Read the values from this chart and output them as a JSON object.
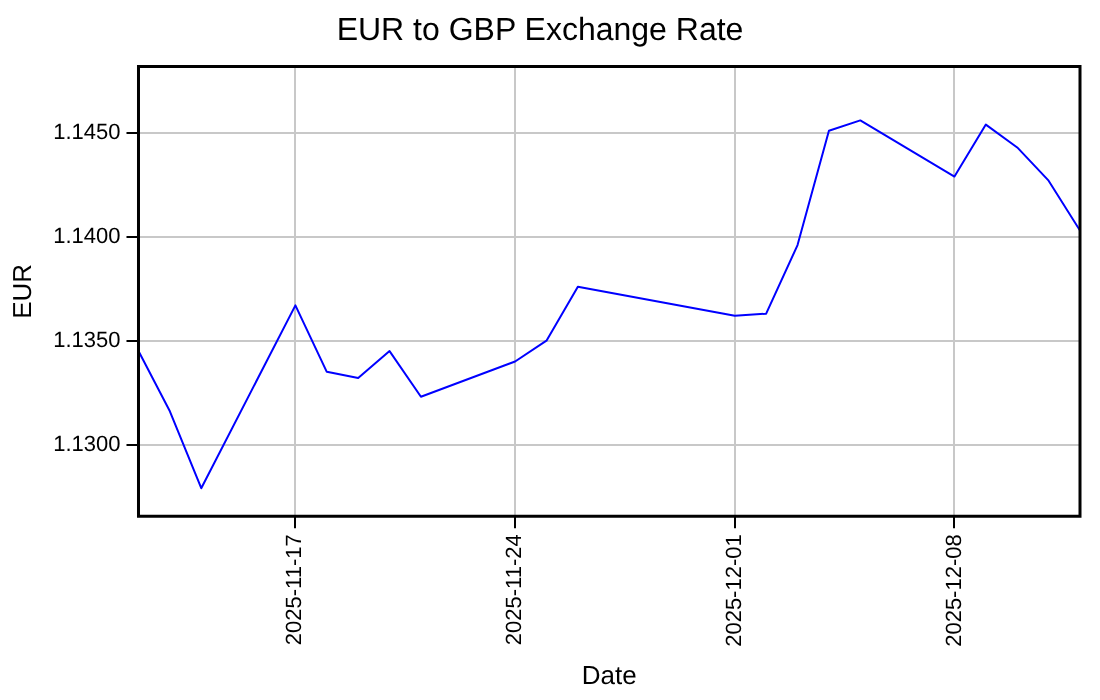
{
  "chart_data": {
    "type": "line",
    "title": "EUR to GBP Exchange Rate",
    "xlabel": "Date",
    "ylabel": "EUR",
    "x": [
      "2025-11-12",
      "2025-11-13",
      "2025-11-14",
      "2025-11-17",
      "2025-11-18",
      "2025-11-19",
      "2025-11-20",
      "2025-11-21",
      "2025-11-24",
      "2025-11-25",
      "2025-11-26",
      "2025-12-01",
      "2025-12-02",
      "2025-12-03",
      "2025-12-04",
      "2025-12-05",
      "2025-12-08",
      "2025-12-09",
      "2025-12-10",
      "2025-12-11",
      "2025-12-12"
    ],
    "series": [
      {
        "color": "#0000ff",
        "values": [
          1.1345,
          1.1316,
          1.1279,
          1.1367,
          1.1335,
          1.1332,
          1.1345,
          1.1323,
          1.134,
          1.135,
          1.1376,
          1.1362,
          1.1363,
          1.1396,
          1.1451,
          1.1456,
          1.1429,
          1.1454,
          1.1443,
          1.1427,
          1.1403
        ]
      }
    ],
    "xlim": [
      "2025-11-12",
      "2025-12-12"
    ],
    "xticks": [
      "2025-11-17",
      "2025-11-24",
      "2025-12-01",
      "2025-12-08"
    ],
    "ylim": [
      1.12655,
      1.1482
    ],
    "yticks": [
      {
        "value": 1.13,
        "label": "1.1300"
      },
      {
        "value": 1.135,
        "label": "1.1350"
      },
      {
        "value": 1.14,
        "label": "1.1400"
      },
      {
        "value": 1.145,
        "label": "1.1450"
      }
    ],
    "grid": true,
    "legend": false,
    "marker": "none",
    "line_style": "solid"
  }
}
